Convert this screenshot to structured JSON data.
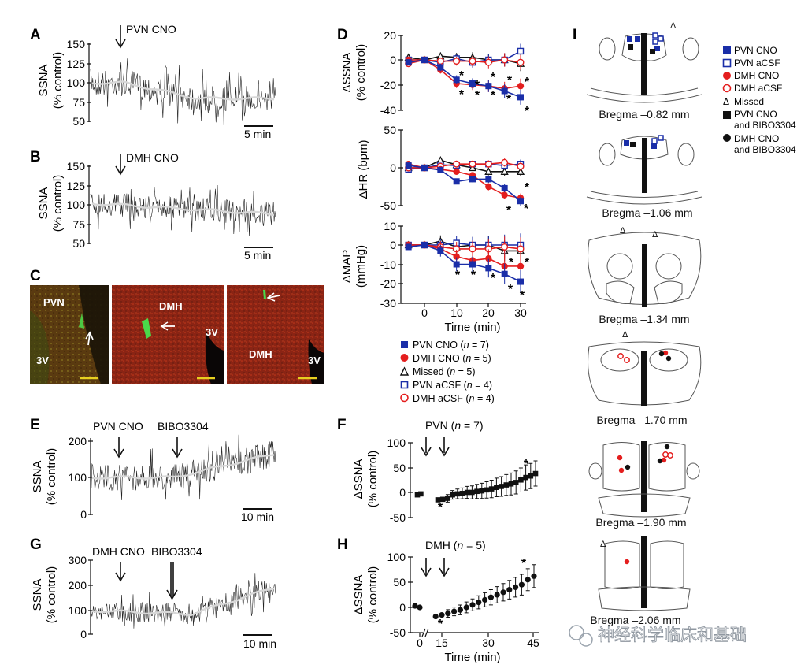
{
  "panel_letters": [
    "A",
    "B",
    "C",
    "D",
    "E",
    "F",
    "G",
    "H",
    "I"
  ],
  "colors": {
    "pvn": "#1a2ea8",
    "dmh": "#e41e1e",
    "black": "#111111",
    "trace": "#222222",
    "smooth": "#d8d8d8",
    "scalebar_yellow": "#e8d020"
  },
  "A": {
    "arrow_label": "PVN CNO",
    "ylabel_1": "SSNA",
    "ylabel_2": "(% control)",
    "yticks": [
      "150",
      "125",
      "100",
      "75",
      "50"
    ],
    "scalebar": "5 min"
  },
  "B": {
    "arrow_label": "DMH CNO",
    "ylabel_1": "SSNA",
    "ylabel_2": "(% control)",
    "yticks": [
      "150",
      "125",
      "100",
      "75",
      "50"
    ],
    "scalebar": "5 min"
  },
  "C": {
    "img1": [
      "PVN",
      "3V"
    ],
    "img2": [
      "DMH",
      "3V"
    ],
    "img3": [
      "DMH",
      "3V"
    ]
  },
  "D": {
    "ssna": {
      "ylabel_1": "ΔSSNA",
      "ylabel_2": "(% control)",
      "yticks": [
        "20",
        "0",
        "-20",
        "-40"
      ]
    },
    "hr": {
      "ylabel": "ΔHR (bpm)",
      "yticks": [
        "50",
        "0",
        "-50"
      ]
    },
    "map": {
      "ylabel_1": "ΔMAP",
      "ylabel_2": "(mmHg)",
      "yticks": [
        "10",
        "0",
        "-10",
        "-20",
        "-30"
      ]
    },
    "xticks": [
      "0",
      "10",
      "20",
      "30"
    ],
    "xlabel": "Time (min)",
    "star": "*",
    "legend": [
      {
        "label": "PVN CNO (",
        "n": "n",
        "val": " = 7)",
        "marker": "filled-square",
        "color": "#1a2ea8"
      },
      {
        "label": "DMH CNO (",
        "n": "n",
        "val": " = 5)",
        "marker": "filled-circle",
        "color": "#e41e1e"
      },
      {
        "label": "Missed (",
        "n": "n",
        "val": " = 5)",
        "marker": "open-triangle",
        "color": "#111111"
      },
      {
        "label": "PVN aCSF (",
        "n": "n",
        "val": " = 4)",
        "marker": "open-square",
        "color": "#1a2ea8"
      },
      {
        "label": "DMH aCSF (",
        "n": "n",
        "val": " = 4)",
        "marker": "open-circle",
        "color": "#e41e1e"
      }
    ]
  },
  "E": {
    "arrow1": "PVN CNO",
    "arrow2": "BIBO3304",
    "ylabel_1": "SSNA",
    "ylabel_2": "(% control)",
    "yticks": [
      "200",
      "100",
      "0"
    ],
    "scalebar": "10 min"
  },
  "F": {
    "title": "PVN (",
    "n": "n",
    "val": " = 7)",
    "ylabel_1": "ΔSSNA",
    "ylabel_2": "(% control)",
    "yticks": [
      "100",
      "50",
      "0",
      "-50"
    ]
  },
  "G": {
    "arrow1": "DMH CNO",
    "arrow2": "BIBO3304",
    "ylabel_1": "SSNA",
    "ylabel_2": "(% control)",
    "yticks": [
      "300",
      "200",
      "100",
      "0"
    ],
    "scalebar": "10 min"
  },
  "H": {
    "title": "DMH (",
    "n": "n",
    "val": " = 5)",
    "ylabel_1": "ΔSSNA",
    "ylabel_2": "(% control)",
    "yticks": [
      "100",
      "50",
      "0",
      "-50"
    ],
    "xticks": [
      "0",
      "15",
      "30",
      "45"
    ],
    "xlabel": "Time (min)"
  },
  "I": {
    "legend": [
      "PVN CNO",
      "PVN aCSF",
      "DMH CNO",
      "DMH aCSF",
      "Missed",
      "PVN CNO",
      "and BIBO3304",
      "DMH CNO",
      "and BIBO3304"
    ],
    "sections": [
      "Bregma –0.82 mm",
      "Bregma –1.06 mm",
      "Bregma –1.34 mm",
      "Bregma –1.70 mm",
      "Bregma –1.90 mm",
      "Bregma –2.06 mm"
    ],
    "delta": "Δ"
  },
  "watermark": "神经科学临床和基础",
  "chart_data": [
    {
      "type": "line",
      "panel": "D-SSNA",
      "x": [
        -5,
        0,
        5,
        10,
        15,
        20,
        25,
        30
      ],
      "series": [
        {
          "name": "PVN CNO (n = 7)",
          "values": [
            -2,
            0,
            -6,
            -16,
            -19,
            -21,
            -25,
            -30
          ]
        },
        {
          "name": "DMH CNO (n = 5)",
          "values": [
            0,
            0,
            -8,
            -19,
            -20,
            -21,
            -23,
            -21
          ]
        },
        {
          "name": "Missed (n = 5)",
          "values": [
            2,
            0,
            3,
            2,
            2,
            0,
            0,
            -3
          ]
        },
        {
          "name": "PVN aCSF (n = 4)",
          "values": [
            0,
            0,
            -2,
            1,
            -2,
            0,
            0,
            7
          ]
        },
        {
          "name": "DMH aCSF (n = 4)",
          "values": [
            -3,
            0,
            -1,
            -1,
            -1,
            -2,
            0,
            -2
          ]
        }
      ],
      "ylim": [
        -40,
        20
      ],
      "xlabel": "Time (min)",
      "ylabel": "ΔSSNA (% control)"
    },
    {
      "type": "line",
      "panel": "D-HR",
      "x": [
        -5,
        0,
        5,
        10,
        15,
        20,
        25,
        30
      ],
      "series": [
        {
          "name": "PVN CNO (n = 7)",
          "values": [
            3,
            0,
            -3,
            -18,
            -15,
            -15,
            -27,
            -44
          ]
        },
        {
          "name": "DMH CNO (n = 5)",
          "values": [
            5,
            0,
            -2,
            -5,
            -10,
            -25,
            -36,
            -40
          ]
        },
        {
          "name": "Missed (n = 5)",
          "values": [
            0,
            0,
            10,
            4,
            0,
            -5,
            -5,
            -5
          ]
        },
        {
          "name": "PVN aCSF (n = 4)",
          "values": [
            -2,
            0,
            4,
            3,
            5,
            5,
            3,
            5
          ]
        },
        {
          "name": "DMH aCSF (n = 4)",
          "values": [
            0,
            0,
            2,
            5,
            5,
            5,
            7,
            2
          ]
        }
      ],
      "ylim": [
        -50,
        50
      ],
      "xlabel": "Time (min)",
      "ylabel": "ΔHR (bpm)"
    },
    {
      "type": "line",
      "panel": "D-MAP",
      "x": [
        -5,
        0,
        5,
        10,
        15,
        20,
        25,
        30
      ],
      "series": [
        {
          "name": "PVN CNO (n = 7)",
          "values": [
            -1,
            0,
            -3,
            -10,
            -10,
            -12,
            -15,
            -19
          ]
        },
        {
          "name": "DMH CNO (n = 5)",
          "values": [
            0,
            0,
            -2,
            -6,
            -8,
            -7,
            -11,
            -11
          ]
        },
        {
          "name": "Missed (n = 5)",
          "values": [
            0,
            0,
            2,
            -1,
            0,
            0,
            -3,
            -3
          ]
        },
        {
          "name": "PVN aCSF (n = 4)",
          "values": [
            0,
            0,
            0,
            1,
            0,
            0,
            0,
            0
          ]
        },
        {
          "name": "DMH aCSF (n = 4)",
          "values": [
            0,
            0,
            -1,
            -2,
            -2,
            -2,
            -1,
            -2
          ]
        }
      ],
      "ylim": [
        -30,
        10
      ],
      "xlabel": "Time (min)",
      "ylabel": "ΔMAP (mmHg)"
    },
    {
      "type": "scatter",
      "panel": "F",
      "x": [
        -4,
        -2,
        2,
        4,
        6,
        8,
        10,
        12,
        14,
        16,
        18,
        20,
        22,
        24,
        26,
        28,
        30,
        32,
        34,
        36,
        38,
        40,
        42
      ],
      "values": [
        -5,
        -3,
        -15,
        -14,
        -12,
        -5,
        -3,
        -2,
        0,
        0,
        2,
        3,
        5,
        7,
        10,
        12,
        15,
        17,
        20,
        25,
        30,
        33,
        38
      ],
      "ylim": [
        -50,
        100
      ]
    },
    {
      "type": "scatter",
      "panel": "H",
      "x": [
        -4,
        -2,
        13,
        15,
        17,
        19,
        21,
        23,
        25,
        27,
        29,
        31,
        33,
        35,
        37,
        39,
        41,
        43,
        45
      ],
      "values": [
        3,
        0,
        -18,
        -15,
        -12,
        -8,
        -5,
        0,
        5,
        10,
        15,
        20,
        25,
        30,
        35,
        40,
        45,
        55,
        62
      ],
      "xticks": [
        "0",
        "15",
        "30",
        "45"
      ],
      "ylim": [
        -50,
        100
      ]
    }
  ]
}
